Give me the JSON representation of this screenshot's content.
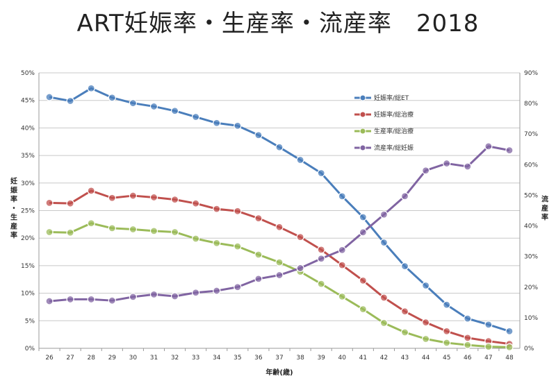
{
  "chart_data": {
    "type": "line",
    "title": "ART妊娠率・生産率・流産率　2018",
    "xlabel": "年齢(歳)",
    "ylabel_left": "妊娠率・生産率",
    "ylabel_right": "流産率",
    "x": [
      26,
      27,
      28,
      29,
      30,
      31,
      32,
      33,
      34,
      35,
      36,
      37,
      38,
      39,
      40,
      41,
      42,
      43,
      44,
      45,
      46,
      47,
      48
    ],
    "ylim_left": [
      0,
      50
    ],
    "ylim_right": [
      0,
      90
    ],
    "yticks_left": [
      "0%",
      "5%",
      "10%",
      "15%",
      "20%",
      "25%",
      "30%",
      "35%",
      "40%",
      "45%",
      "50%"
    ],
    "yticks_right": [
      "0%",
      "10%",
      "20%",
      "30%",
      "40%",
      "50%",
      "60%",
      "70%",
      "80%",
      "90%"
    ],
    "grid": true,
    "legend_position": "top-right",
    "series": [
      {
        "name": "妊娠率/総ET",
        "axis": "left",
        "color": "#4a7ebb",
        "values": [
          45.6,
          44.9,
          47.2,
          45.5,
          44.5,
          43.9,
          43.1,
          42.0,
          40.9,
          40.4,
          38.7,
          36.5,
          34.2,
          31.8,
          27.6,
          23.8,
          19.2,
          14.9,
          11.4,
          7.9,
          5.4,
          4.3,
          3.1
        ]
      },
      {
        "name": "妊娠率/総治療",
        "axis": "left",
        "color": "#c0504d",
        "values": [
          26.4,
          26.3,
          28.6,
          27.3,
          27.7,
          27.4,
          27.0,
          26.3,
          25.3,
          24.9,
          23.6,
          22.0,
          20.2,
          17.9,
          15.1,
          12.3,
          9.2,
          6.7,
          4.7,
          3.1,
          1.9,
          1.3,
          0.8
        ]
      },
      {
        "name": "生産率/総治療",
        "axis": "left",
        "color": "#9bbb59",
        "values": [
          21.1,
          21.0,
          22.7,
          21.8,
          21.6,
          21.3,
          21.1,
          19.9,
          19.1,
          18.5,
          17.0,
          15.6,
          13.9,
          11.7,
          9.4,
          7.1,
          4.6,
          2.9,
          1.7,
          1.0,
          0.6,
          0.3,
          0.2
        ]
      },
      {
        "name": "流産率/総妊娠",
        "axis": "right",
        "color": "#8064a2",
        "values": [
          15.4,
          16.0,
          16.0,
          15.6,
          16.8,
          17.6,
          17.0,
          18.2,
          18.8,
          20.0,
          22.7,
          23.9,
          26.2,
          29.3,
          32.1,
          37.9,
          43.7,
          49.7,
          58.1,
          60.4,
          59.4,
          66.0,
          64.7
        ]
      }
    ]
  }
}
